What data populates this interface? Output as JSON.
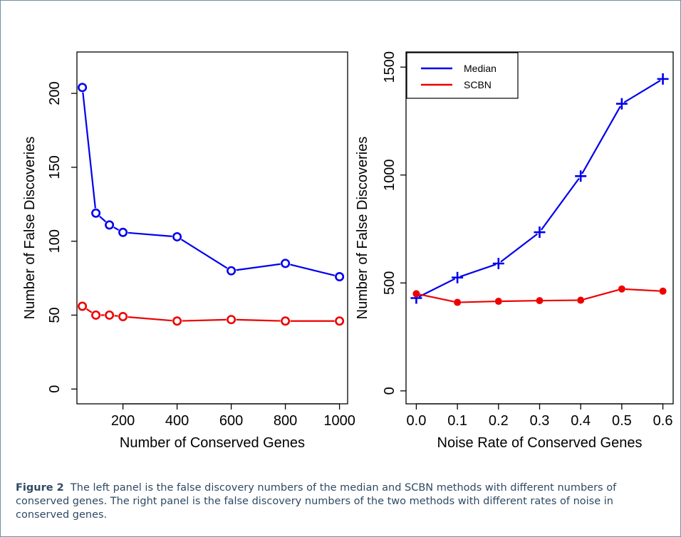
{
  "chart_data": [
    {
      "type": "line",
      "xlabel": "Number of Conserved Genes",
      "ylabel": "Number of False Discoveries",
      "xlim": [
        30,
        1030
      ],
      "ylim": [
        -10,
        228
      ],
      "xticks": [
        200,
        400,
        600,
        800,
        1000
      ],
      "yticks": [
        0,
        50,
        100,
        150,
        200
      ],
      "x": [
        50,
        100,
        150,
        200,
        400,
        600,
        800,
        1000
      ],
      "series": [
        {
          "color": "#0000ee",
          "marker": "circle",
          "values": [
            204,
            119,
            111,
            106,
            103,
            80,
            85,
            76
          ]
        },
        {
          "color": "#ee0000",
          "marker": "circle",
          "values": [
            56,
            50,
            50,
            49,
            46,
            47,
            46,
            46
          ]
        }
      ]
    },
    {
      "type": "line",
      "xlabel": "Noise Rate of Conserved Genes",
      "ylabel": "Number of False Discoveries",
      "xlim": [
        -0.025,
        0.625
      ],
      "ylim": [
        -60,
        1570
      ],
      "xticks": [
        0.0,
        0.1,
        0.2,
        0.3,
        0.4,
        0.5,
        0.6
      ],
      "xtick_labels": [
        "0.0",
        "0.1",
        "0.2",
        "0.3",
        "0.4",
        "0.5",
        "0.6"
      ],
      "yticks": [
        0,
        500,
        1000,
        1500
      ],
      "x": [
        0.0,
        0.1,
        0.2,
        0.3,
        0.4,
        0.5,
        0.6
      ],
      "legend": "top-left",
      "series": [
        {
          "name": "Median",
          "color": "#0000ee",
          "marker": "plus",
          "values": [
            430,
            525,
            590,
            735,
            995,
            1330,
            1445
          ]
        },
        {
          "name": "SCBN",
          "color": "#ee0000",
          "marker": "dot",
          "values": [
            450,
            410,
            415,
            418,
            420,
            472,
            462
          ]
        }
      ]
    }
  ],
  "caption": {
    "label": "Figure 2",
    "text": "The left panel is the false discovery numbers of the median and SCBN methods with different numbers of conserved genes. The right panel is the false discovery numbers of the two methods with different rates of noise in conserved genes."
  }
}
